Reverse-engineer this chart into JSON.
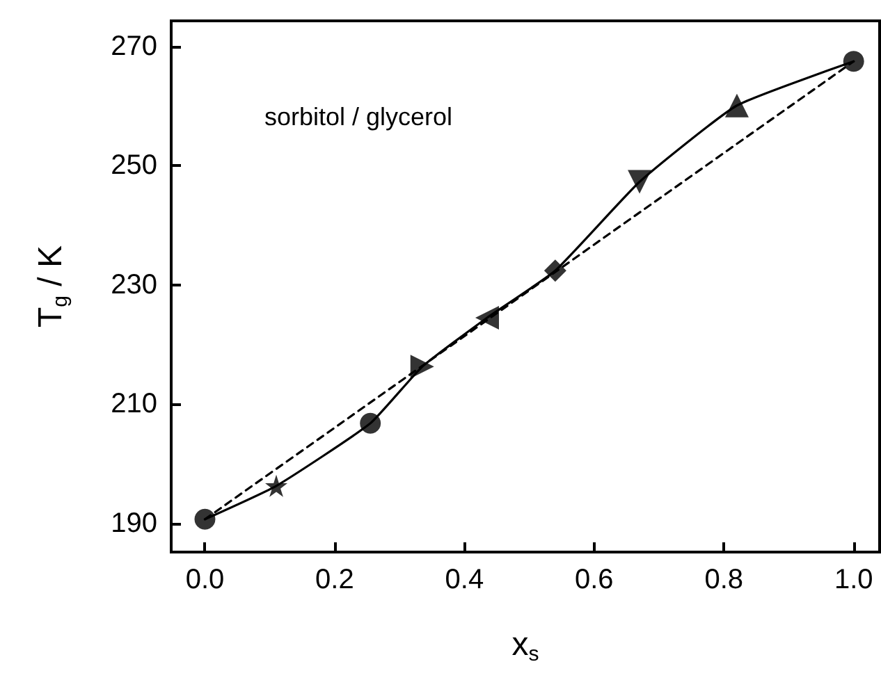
{
  "chart_data": {
    "type": "scatter",
    "xlabel": "x$_{s}$",
    "ylabel": "T$_{g}$ / K",
    "annotations": [
      "sorbitol / glycerol"
    ],
    "xlim": [
      -0.052,
      1.04
    ],
    "ylim": [
      185.2,
      274.3
    ],
    "xticks": [
      {
        "value": 0,
        "label": "0.0"
      },
      {
        "value": 0.2,
        "label": "0.2"
      },
      {
        "value": 0.4,
        "label": "0.4"
      },
      {
        "value": 0.6,
        "label": "0.6"
      },
      {
        "value": 0.8,
        "label": "0.8"
      },
      {
        "value": 1,
        "label": "1.0"
      }
    ],
    "yticks": [
      190,
      210,
      230,
      250,
      270
    ],
    "grid": false,
    "series": [
      {
        "type": "line",
        "color": "#000000",
        "line_style": "solid",
        "marker": "none",
        "x": [
          0,
          0.11,
          0.255,
          0.335,
          0.435,
          0.54,
          0.67,
          0.82,
          1.0
        ],
        "values": [
          190.7,
          196.3,
          206.8,
          216.3,
          224.5,
          232.4,
          247.3,
          260.1,
          267.5
        ]
      },
      {
        "type": "line",
        "color": "#000000",
        "line_style": "dashed",
        "marker": "none",
        "x": [
          0,
          1.0
        ],
        "values": [
          190.7,
          267.5
        ]
      },
      {
        "color": "#000000",
        "x": [
          0
        ],
        "values": [
          190.7
        ]
      },
      {
        "color": "#000000",
        "marker": "star",
        "x": [
          0.11
        ],
        "values": [
          196.3
        ]
      },
      {
        "color": "#000000",
        "x": [
          0.255
        ],
        "values": [
          206.8
        ]
      },
      {
        "color": "#000000",
        "marker": "triangle-right",
        "x": [
          0.335
        ],
        "values": [
          216.3
        ]
      },
      {
        "color": "#000000",
        "marker": "triangle-left",
        "x": [
          0.435
        ],
        "values": [
          224.5
        ]
      },
      {
        "color": "#000000",
        "marker": "diamond",
        "x": [
          0.54
        ],
        "values": [
          232.4
        ]
      },
      {
        "color": "#000000",
        "marker": "triangle-down",
        "x": [
          0.67
        ],
        "values": [
          247.3
        ]
      },
      {
        "color": "#000000",
        "marker": "triangle",
        "x": [
          0.82
        ],
        "values": [
          260.1
        ]
      },
      {
        "color": "#000000",
        "marker": "circle",
        "x": [
          1.0
        ],
        "values": [
          267.5
        ]
      }
    ]
  }
}
